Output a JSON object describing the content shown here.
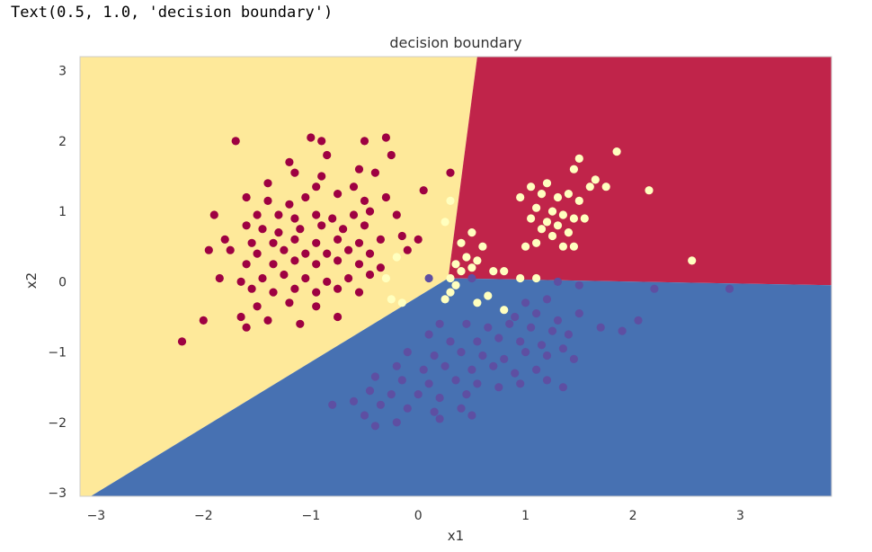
{
  "output_text": "Text(0.5, 1.0, 'decision boundary')",
  "colors": {
    "region_yellow": "#FEE99A",
    "region_red": "#C0244A",
    "region_blue": "#4771B2",
    "point_class0": "#9E0142",
    "point_class1": "#FFFFBF",
    "point_class2": "#5E4FA2",
    "frame": "#cccccc"
  },
  "chart_data": {
    "type": "scatter",
    "title": "decision boundary",
    "xlabel": "x1",
    "ylabel": "x2",
    "xlim": [
      -3.15,
      3.85
    ],
    "ylim": [
      -3.05,
      3.2
    ],
    "xticks": [
      -3,
      -2,
      -1,
      0,
      1,
      2,
      3
    ],
    "yticks": [
      3,
      2,
      1,
      0,
      -1,
      -2,
      -3
    ],
    "grid": false,
    "regions": [
      {
        "color": "yellow",
        "polygon": [
          [
            -3.15,
            3.2
          ],
          [
            0.55,
            3.2
          ],
          [
            0.28,
            0.05
          ],
          [
            -3.05,
            -3.05
          ],
          [
            -3.15,
            -3.05
          ]
        ]
      },
      {
        "color": "red",
        "polygon": [
          [
            0.55,
            3.2
          ],
          [
            3.85,
            3.2
          ],
          [
            3.85,
            -0.05
          ],
          [
            0.28,
            0.05
          ]
        ]
      },
      {
        "color": "blue",
        "polygon": [
          [
            -3.05,
            -3.05
          ],
          [
            0.28,
            0.05
          ],
          [
            3.85,
            -0.05
          ],
          [
            3.85,
            -3.05
          ]
        ]
      }
    ],
    "series": [
      {
        "color": "point_class0",
        "points": [
          [
            -1.7,
            2.0
          ],
          [
            -1.0,
            2.05
          ],
          [
            -0.9,
            2.0
          ],
          [
            -0.5,
            2.0
          ],
          [
            -0.3,
            2.05
          ],
          [
            -0.25,
            1.8
          ],
          [
            -0.85,
            1.8
          ],
          [
            -1.2,
            1.7
          ],
          [
            -0.55,
            1.6
          ],
          [
            -0.9,
            1.5
          ],
          [
            -1.15,
            1.55
          ],
          [
            -0.4,
            1.55
          ],
          [
            -1.4,
            1.4
          ],
          [
            -0.95,
            1.35
          ],
          [
            -0.6,
            1.35
          ],
          [
            -0.3,
            1.2
          ],
          [
            0.05,
            1.3
          ],
          [
            0.3,
            1.55
          ],
          [
            -1.6,
            1.2
          ],
          [
            -1.4,
            1.15
          ],
          [
            -1.2,
            1.1
          ],
          [
            -1.05,
            1.2
          ],
          [
            -0.75,
            1.25
          ],
          [
            -0.5,
            1.15
          ],
          [
            -1.9,
            0.95
          ],
          [
            -1.5,
            0.95
          ],
          [
            -1.3,
            0.95
          ],
          [
            -1.15,
            0.9
          ],
          [
            -0.95,
            0.95
          ],
          [
            -0.8,
            0.9
          ],
          [
            -0.6,
            0.95
          ],
          [
            -0.45,
            1.0
          ],
          [
            -0.2,
            0.95
          ],
          [
            -1.6,
            0.8
          ],
          [
            -1.45,
            0.75
          ],
          [
            -1.3,
            0.7
          ],
          [
            -1.1,
            0.75
          ],
          [
            -0.9,
            0.8
          ],
          [
            -0.7,
            0.75
          ],
          [
            -0.5,
            0.8
          ],
          [
            -1.8,
            0.6
          ],
          [
            -1.55,
            0.55
          ],
          [
            -1.35,
            0.55
          ],
          [
            -1.15,
            0.6
          ],
          [
            -0.95,
            0.55
          ],
          [
            -0.75,
            0.6
          ],
          [
            -0.55,
            0.55
          ],
          [
            -0.35,
            0.6
          ],
          [
            -0.15,
            0.65
          ],
          [
            0.0,
            0.6
          ],
          [
            -1.95,
            0.45
          ],
          [
            -1.75,
            0.45
          ],
          [
            -1.5,
            0.4
          ],
          [
            -1.25,
            0.45
          ],
          [
            -1.05,
            0.4
          ],
          [
            -0.85,
            0.4
          ],
          [
            -0.65,
            0.45
          ],
          [
            -0.45,
            0.4
          ],
          [
            -0.1,
            0.45
          ],
          [
            -1.6,
            0.25
          ],
          [
            -1.35,
            0.25
          ],
          [
            -1.15,
            0.3
          ],
          [
            -0.95,
            0.25
          ],
          [
            -0.75,
            0.3
          ],
          [
            -0.55,
            0.25
          ],
          [
            -0.35,
            0.2
          ],
          [
            -1.85,
            0.05
          ],
          [
            -1.65,
            0.0
          ],
          [
            -1.45,
            0.05
          ],
          [
            -1.25,
            0.1
          ],
          [
            -1.05,
            0.05
          ],
          [
            -0.85,
            0.0
          ],
          [
            -0.65,
            0.05
          ],
          [
            -0.45,
            0.1
          ],
          [
            -1.55,
            -0.1
          ],
          [
            -1.35,
            -0.15
          ],
          [
            -1.15,
            -0.1
          ],
          [
            -0.95,
            -0.15
          ],
          [
            -0.75,
            -0.1
          ],
          [
            -0.55,
            -0.15
          ],
          [
            -1.5,
            -0.35
          ],
          [
            -1.2,
            -0.3
          ],
          [
            -0.95,
            -0.35
          ],
          [
            -1.65,
            -0.5
          ],
          [
            -1.4,
            -0.55
          ],
          [
            -0.75,
            -0.5
          ],
          [
            -2.0,
            -0.55
          ],
          [
            -1.6,
            -0.65
          ],
          [
            -2.2,
            -0.85
          ],
          [
            -1.1,
            -0.6
          ]
        ]
      },
      {
        "color": "point_class1",
        "points": [
          [
            1.85,
            1.85
          ],
          [
            1.5,
            1.75
          ],
          [
            1.45,
            1.6
          ],
          [
            1.65,
            1.45
          ],
          [
            1.6,
            1.35
          ],
          [
            1.75,
            1.35
          ],
          [
            2.15,
            1.3
          ],
          [
            1.2,
            1.4
          ],
          [
            1.05,
            1.35
          ],
          [
            0.95,
            1.2
          ],
          [
            1.15,
            1.25
          ],
          [
            1.3,
            1.2
          ],
          [
            1.4,
            1.25
          ],
          [
            1.5,
            1.15
          ],
          [
            1.1,
            1.05
          ],
          [
            1.25,
            1.0
          ],
          [
            1.35,
            0.95
          ],
          [
            1.45,
            0.9
          ],
          [
            1.55,
            0.9
          ],
          [
            1.05,
            0.9
          ],
          [
            1.2,
            0.85
          ],
          [
            1.3,
            0.8
          ],
          [
            1.15,
            0.75
          ],
          [
            1.4,
            0.7
          ],
          [
            1.25,
            0.65
          ],
          [
            1.1,
            0.55
          ],
          [
            1.35,
            0.5
          ],
          [
            1.0,
            0.5
          ],
          [
            1.45,
            0.5
          ],
          [
            0.5,
            0.7
          ],
          [
            0.4,
            0.55
          ],
          [
            0.45,
            0.35
          ],
          [
            0.55,
            0.3
          ],
          [
            0.5,
            0.2
          ],
          [
            0.6,
            0.5
          ],
          [
            0.35,
            0.25
          ],
          [
            0.4,
            0.15
          ],
          [
            0.7,
            0.15
          ],
          [
            0.8,
            0.15
          ],
          [
            0.95,
            0.05
          ],
          [
            1.1,
            0.05
          ],
          [
            2.55,
            0.3
          ],
          [
            0.3,
            0.05
          ],
          [
            0.35,
            -0.05
          ],
          [
            0.65,
            -0.2
          ],
          [
            0.3,
            -0.15
          ],
          [
            0.25,
            -0.25
          ],
          [
            0.55,
            -0.3
          ],
          [
            0.8,
            -0.4
          ],
          [
            -0.2,
            0.35
          ],
          [
            -0.3,
            0.05
          ],
          [
            -0.25,
            -0.25
          ],
          [
            -0.15,
            -0.3
          ],
          [
            0.25,
            0.85
          ],
          [
            0.3,
            1.15
          ]
        ]
      },
      {
        "color": "point_class2",
        "points": [
          [
            0.1,
            0.05
          ],
          [
            0.5,
            0.05
          ],
          [
            1.3,
            0.0
          ],
          [
            1.5,
            -0.05
          ],
          [
            2.2,
            -0.1
          ],
          [
            2.9,
            -0.1
          ],
          [
            1.0,
            -0.3
          ],
          [
            1.2,
            -0.25
          ],
          [
            0.9,
            -0.5
          ],
          [
            1.1,
            -0.45
          ],
          [
            1.3,
            -0.55
          ],
          [
            1.5,
            -0.45
          ],
          [
            1.7,
            -0.65
          ],
          [
            1.9,
            -0.7
          ],
          [
            2.05,
            -0.55
          ],
          [
            0.2,
            -0.6
          ],
          [
            0.45,
            -0.6
          ],
          [
            0.65,
            -0.65
          ],
          [
            0.85,
            -0.6
          ],
          [
            1.05,
            -0.65
          ],
          [
            1.25,
            -0.7
          ],
          [
            1.4,
            -0.75
          ],
          [
            0.1,
            -0.75
          ],
          [
            0.3,
            -0.85
          ],
          [
            0.55,
            -0.85
          ],
          [
            0.75,
            -0.8
          ],
          [
            0.95,
            -0.85
          ],
          [
            1.15,
            -0.9
          ],
          [
            1.35,
            -0.95
          ],
          [
            -0.1,
            -1.0
          ],
          [
            0.15,
            -1.05
          ],
          [
            0.4,
            -1.0
          ],
          [
            0.6,
            -1.05
          ],
          [
            0.8,
            -1.1
          ],
          [
            1.0,
            -1.0
          ],
          [
            1.2,
            -1.05
          ],
          [
            1.45,
            -1.1
          ],
          [
            -0.2,
            -1.2
          ],
          [
            0.05,
            -1.25
          ],
          [
            0.25,
            -1.2
          ],
          [
            0.5,
            -1.25
          ],
          [
            0.7,
            -1.2
          ],
          [
            0.9,
            -1.3
          ],
          [
            1.1,
            -1.25
          ],
          [
            -0.4,
            -1.35
          ],
          [
            -0.15,
            -1.4
          ],
          [
            0.1,
            -1.45
          ],
          [
            0.35,
            -1.4
          ],
          [
            0.55,
            -1.45
          ],
          [
            0.75,
            -1.5
          ],
          [
            0.95,
            -1.45
          ],
          [
            -0.45,
            -1.55
          ],
          [
            -0.25,
            -1.6
          ],
          [
            0.0,
            -1.6
          ],
          [
            0.2,
            -1.65
          ],
          [
            0.45,
            -1.6
          ],
          [
            -0.6,
            -1.7
          ],
          [
            -0.35,
            -1.75
          ],
          [
            -0.1,
            -1.8
          ],
          [
            0.15,
            -1.85
          ],
          [
            0.4,
            -1.8
          ],
          [
            -0.8,
            -1.75
          ],
          [
            -0.5,
            -1.9
          ],
          [
            -0.2,
            -2.0
          ],
          [
            0.2,
            -1.95
          ],
          [
            0.5,
            -1.9
          ],
          [
            -0.4,
            -2.05
          ],
          [
            1.2,
            -1.4
          ],
          [
            1.35,
            -1.5
          ]
        ]
      }
    ]
  }
}
